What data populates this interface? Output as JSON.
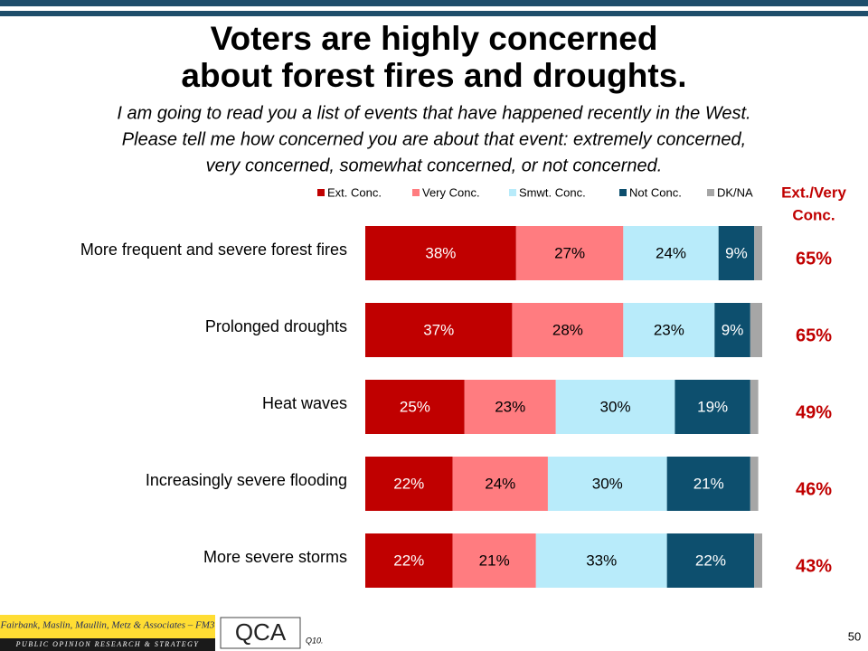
{
  "chart_data": {
    "type": "stacked-barh",
    "title": [
      "Voters are highly concerned",
      "about forest fires and droughts."
    ],
    "subtitle": [
      "I am going to read you a list of events that have happened recently in the West.",
      "Please tell me how concerned you are about that event: extremely concerned,",
      "very concerned, somewhat concerned, or not concerned."
    ],
    "categories": [
      "More frequent and severe forest fires",
      "Prolonged droughts",
      "Heat waves",
      "Increasingly severe flooding",
      "More severe storms"
    ],
    "xlim": [
      0,
      100
    ],
    "series": [
      {
        "name": "Ext. Conc.",
        "color": "#c00000",
        "label_color": "#ffffff",
        "values": [
          38,
          37,
          25,
          22,
          22
        ],
        "value_labels": [
          "38%",
          "37%",
          "25%",
          "22%",
          "22%"
        ]
      },
      {
        "name": "Very Conc.",
        "color": "#ff7c80",
        "label_color": "#000000",
        "values": [
          27,
          28,
          23,
          24,
          21
        ],
        "value_labels": [
          "27%",
          "28%",
          "23%",
          "24%",
          "21%"
        ]
      },
      {
        "name": "Smwt. Conc.",
        "color": "#b8ebfa",
        "label_color": "#000000",
        "values": [
          24,
          23,
          30,
          30,
          33
        ],
        "value_labels": [
          "24%",
          "23%",
          "30%",
          "30%",
          "33%"
        ]
      },
      {
        "name": "Not Conc.",
        "color": "#0d4f6e",
        "label_color": "#ffffff",
        "values": [
          9,
          9,
          19,
          21,
          22
        ],
        "value_labels": [
          "9%",
          "9%",
          "19%",
          "21%",
          "22%"
        ]
      },
      {
        "name": "DK/NA",
        "color": "#a6a6a6",
        "values": [
          2,
          3,
          2,
          2,
          2
        ]
      }
    ],
    "net": {
      "title": [
        "Ext./Very",
        "Conc."
      ],
      "color": "#c00000",
      "values": [
        65,
        65,
        49,
        46,
        43
      ],
      "value_labels": [
        "65%",
        "65%",
        "49%",
        "46%",
        "43%"
      ]
    }
  },
  "footer": {
    "firm": "Fairbank, Maslin, Maullin, Metz & Associates – FM3",
    "tagline": "PUBLIC OPINION RESEARCH & STRATEGY",
    "logo": "QCA",
    "question": "Q10.",
    "page": "50"
  }
}
